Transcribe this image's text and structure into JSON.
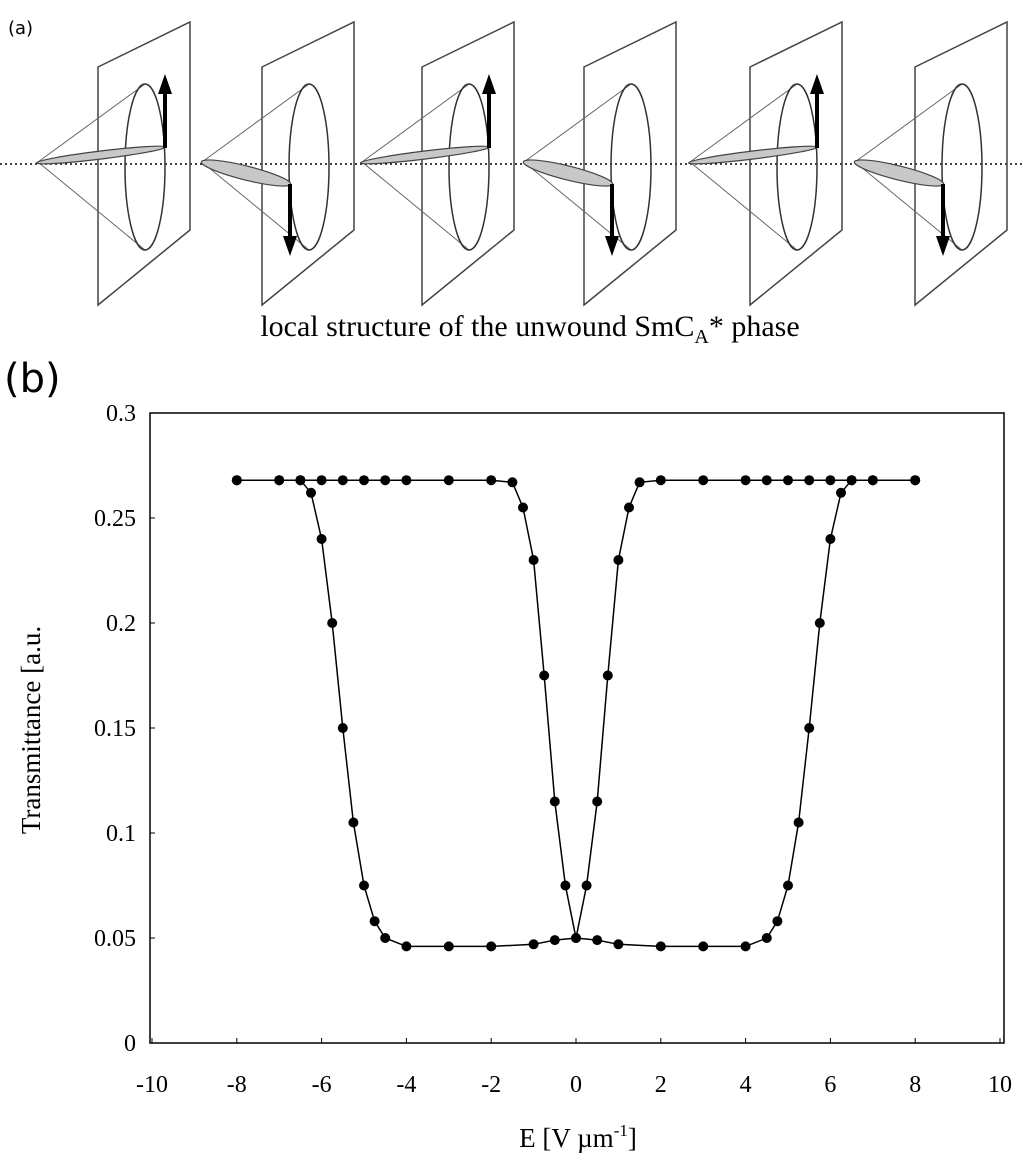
{
  "figure_a": {
    "label": "(a)",
    "caption": {
      "text": "local structure of the unwound SmC",
      "subscript": "A",
      "suffix": "* phase"
    }
  },
  "chart_data": {
    "type": "line",
    "panel_label": "(b)",
    "ylabel": "Transmittance [a.u.",
    "xlabel": "E [V µm",
    "xlabel_superscript": "-1",
    "xlabel_suffix": "]",
    "xlim": [
      -10,
      10
    ],
    "xticks": [
      -10,
      -8,
      -6,
      -4,
      -2,
      0,
      2,
      4,
      6,
      8,
      10
    ],
    "ylim": [
      0,
      0.3
    ],
    "yticks": [
      0,
      0.05,
      0.1,
      0.15,
      0.2,
      0.25,
      0.3
    ],
    "grid": false,
    "series": [
      {
        "color": "#000000",
        "x": [
          8,
          7,
          6.5,
          6,
          5.5,
          5,
          4.5,
          4,
          3,
          2,
          1.5,
          1.25,
          1,
          0.75,
          0.5,
          0.25,
          0,
          -0.5,
          -1,
          -2,
          -3,
          -4,
          -4.5,
          -4.75,
          -5,
          -5.25,
          -5.5,
          -5.75,
          -6,
          -6.25,
          -6.5,
          -7,
          -8
        ],
        "values": [
          0.268,
          0.268,
          0.268,
          0.268,
          0.268,
          0.268,
          0.268,
          0.268,
          0.268,
          0.268,
          0.267,
          0.255,
          0.23,
          0.175,
          0.115,
          0.075,
          0.05,
          0.049,
          0.047,
          0.046,
          0.046,
          0.046,
          0.05,
          0.058,
          0.075,
          0.105,
          0.15,
          0.2,
          0.24,
          0.262,
          0.268,
          0.268,
          0.268
        ]
      },
      {
        "color": "#000000",
        "x": [
          -8,
          -7,
          -6.5,
          -6,
          -5.5,
          -5,
          -4.5,
          -4,
          -3,
          -2,
          -1.5,
          -1.25,
          -1,
          -0.75,
          -0.5,
          -0.25,
          0,
          0.5,
          1,
          2,
          3,
          4,
          4.5,
          4.75,
          5,
          5.25,
          5.5,
          5.75,
          6,
          6.25,
          6.5,
          7,
          8
        ],
        "values": [
          0.268,
          0.268,
          0.268,
          0.268,
          0.268,
          0.268,
          0.268,
          0.268,
          0.268,
          0.268,
          0.267,
          0.255,
          0.23,
          0.175,
          0.115,
          0.075,
          0.05,
          0.049,
          0.047,
          0.046,
          0.046,
          0.046,
          0.05,
          0.058,
          0.075,
          0.105,
          0.15,
          0.2,
          0.24,
          0.262,
          0.268,
          0.268,
          0.268
        ]
      }
    ]
  }
}
